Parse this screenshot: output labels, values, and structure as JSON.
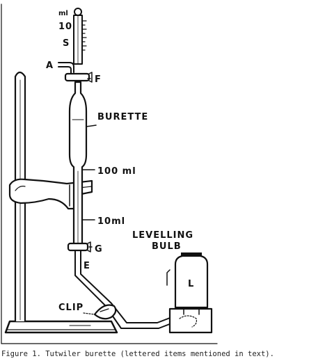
{
  "figure": {
    "caption": "Figure 1. Tutwiler burette (lettered items mentioned in text).",
    "labels": {
      "ml": "ml",
      "ten": "10",
      "s": "S",
      "a": "A",
      "f": "F",
      "burette": "BURETTE",
      "hundred_ml": "100 ml",
      "ten_ml": "10ml",
      "g": "G",
      "e": "E",
      "levelling": "LEVELLING",
      "bulb": "BULB",
      "l": "L",
      "clip": "CLIP"
    }
  }
}
